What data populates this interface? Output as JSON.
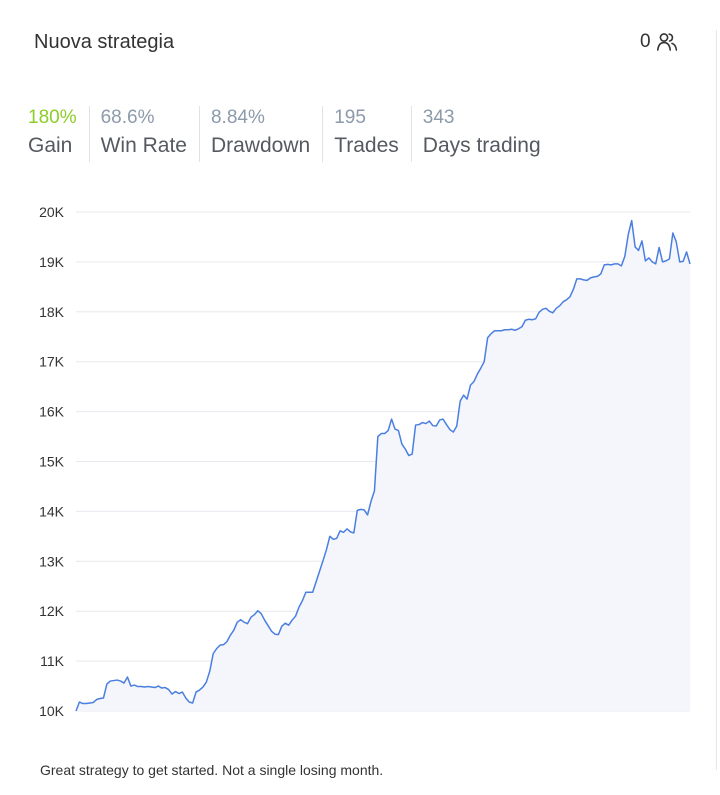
{
  "card": {
    "title": "Nuova strategia",
    "followers_count": "0",
    "followers_icon": "people-icon"
  },
  "stats": [
    {
      "value": "180%",
      "label": "Gain"
    },
    {
      "value": "68.6%",
      "label": "Win Rate"
    },
    {
      "value": "8.84%",
      "label": "Drawdown"
    },
    {
      "value": "195",
      "label": "Trades"
    },
    {
      "value": "343",
      "label": "Days trading"
    }
  ],
  "colors": {
    "gain": "#8ccd2a",
    "muted_value": "#8c9aaa",
    "line": "#4a7fe0",
    "area": "#f4f6fc",
    "grid": "#e6e9ee"
  },
  "chart_data": {
    "type": "area",
    "title": "",
    "xlabel": "",
    "ylabel": "",
    "ylim": [
      10000,
      20000
    ],
    "grid": true,
    "yticks": [
      10000,
      11000,
      12000,
      13000,
      14000,
      15000,
      16000,
      17000,
      18000,
      19000,
      20000
    ],
    "ytick_labels": [
      "10K",
      "11K",
      "12K",
      "13K",
      "14K",
      "15K",
      "16K",
      "17K",
      "18K",
      "19K",
      "20K"
    ],
    "series": [
      {
        "values": [
          10000,
          10180,
          10150,
          10150,
          10160,
          10170,
          10230,
          10250,
          10260,
          10540,
          10600,
          10610,
          10620,
          10600,
          10560,
          10680,
          10500,
          10520,
          10490,
          10490,
          10480,
          10490,
          10480,
          10470,
          10500,
          10460,
          10470,
          10430,
          10340,
          10390,
          10350,
          10380,
          10260,
          10180,
          10160,
          10380,
          10420,
          10480,
          10580,
          10800,
          11150,
          11250,
          11320,
          11330,
          11390,
          11520,
          11620,
          11780,
          11830,
          11780,
          11750,
          11880,
          11930,
          12010,
          11950,
          11820,
          11710,
          11600,
          11540,
          11530,
          11700,
          11760,
          11720,
          11820,
          11900,
          12080,
          12210,
          12380,
          12380,
          12380,
          12590,
          12800,
          13010,
          13230,
          13500,
          13440,
          13460,
          13610,
          13580,
          13650,
          13590,
          13570,
          14020,
          14040,
          14030,
          13930,
          14200,
          14410,
          15500,
          15560,
          15560,
          15620,
          15850,
          15650,
          15620,
          15350,
          15250,
          15120,
          15150,
          15730,
          15740,
          15780,
          15760,
          15810,
          15720,
          15710,
          15830,
          15850,
          15740,
          15640,
          15590,
          15710,
          16210,
          16330,
          16250,
          16530,
          16600,
          16750,
          16870,
          17000,
          17480,
          17560,
          17620,
          17620,
          17620,
          17640,
          17640,
          17650,
          17630,
          17660,
          17700,
          17830,
          17850,
          17840,
          17860,
          17990,
          18050,
          18070,
          18010,
          17980,
          18070,
          18120,
          18200,
          18240,
          18300,
          18450,
          18660,
          18660,
          18640,
          18630,
          18680,
          18700,
          18710,
          18760,
          18940,
          18950,
          18940,
          18960,
          18960,
          18920,
          19110,
          19550,
          19830,
          19300,
          19230,
          19420,
          19020,
          19080,
          19000,
          18960,
          19290,
          19000,
          19020,
          19060,
          19580,
          19400,
          19000,
          19010,
          19200,
          18960
        ]
      }
    ]
  },
  "footer": {
    "note": "Great strategy to get started. Not a single losing month."
  }
}
